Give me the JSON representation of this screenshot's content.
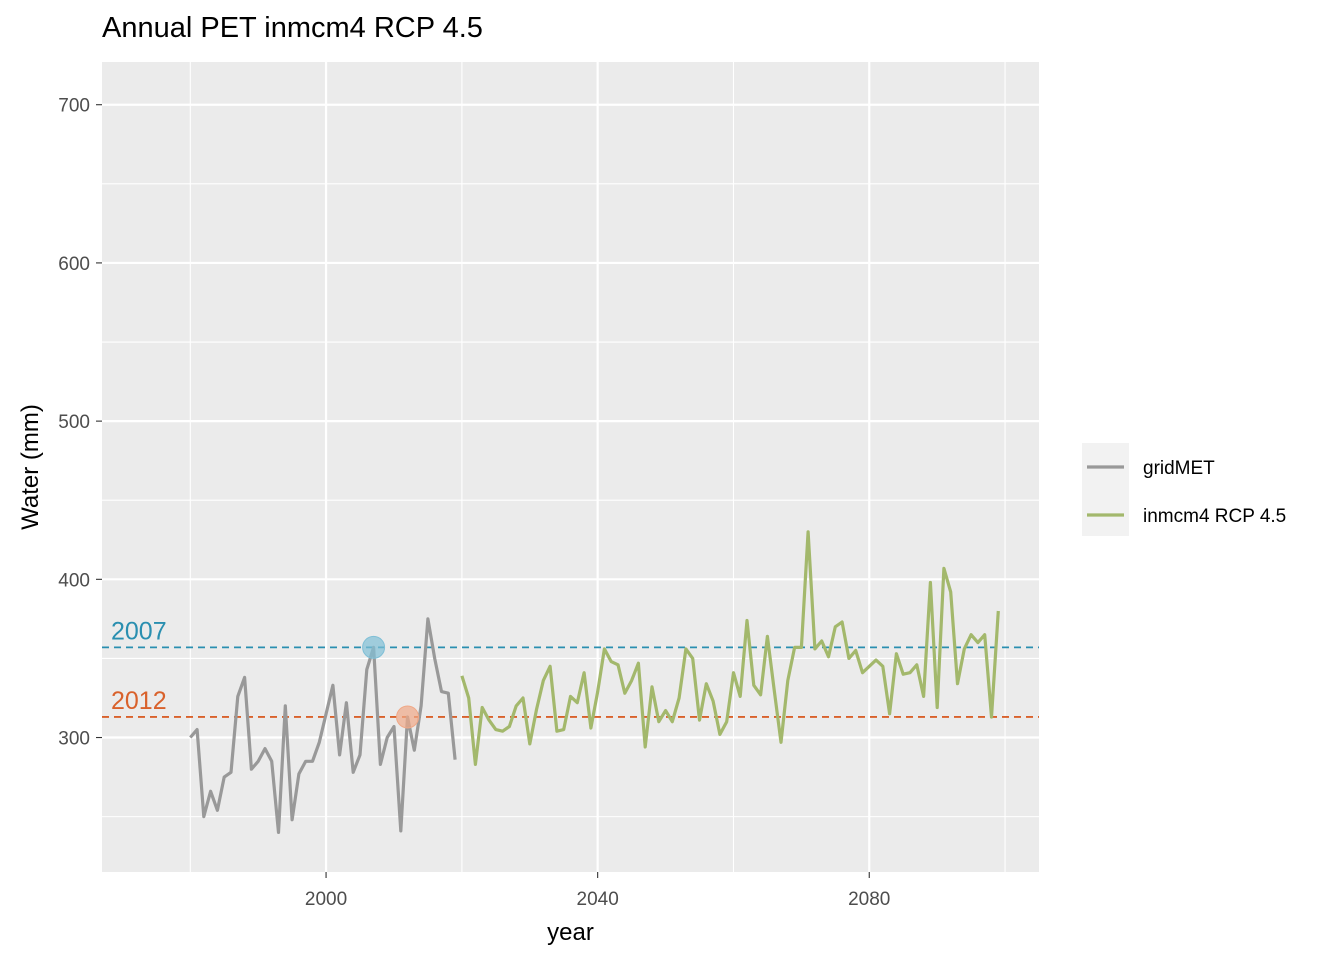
{
  "chart_data": {
    "type": "line",
    "title": "Annual PET inmcm4 RCP 4.5",
    "xlabel": "year",
    "ylabel": "Water (mm)",
    "xlim": [
      1967,
      2105
    ],
    "ylim": [
      215,
      727
    ],
    "x_ticks": [
      2000,
      2040,
      2080
    ],
    "y_ticks": [
      300,
      400,
      500,
      600,
      700
    ],
    "grid": true,
    "legend_position": "right",
    "series": [
      {
        "name": "gridMET",
        "color": "#999999",
        "x": [
          1980,
          1981,
          1982,
          1983,
          1984,
          1985,
          1986,
          1987,
          1988,
          1989,
          1990,
          1991,
          1992,
          1993,
          1994,
          1995,
          1996,
          1997,
          1998,
          1999,
          2000,
          2001,
          2002,
          2003,
          2004,
          2005,
          2006,
          2007,
          2008,
          2009,
          2010,
          2011,
          2012,
          2013,
          2014,
          2015,
          2016,
          2017,
          2018,
          2019
        ],
        "y": [
          300,
          305,
          250,
          266,
          254,
          275,
          278,
          326,
          338,
          280,
          285,
          293,
          285,
          240,
          320,
          248,
          277,
          285,
          285,
          297,
          315,
          333,
          289,
          322,
          278,
          289,
          343,
          357,
          283,
          300,
          307,
          241,
          313,
          292,
          320,
          375,
          350,
          329,
          328,
          286
        ]
      },
      {
        "name": "inmcm4 RCP 4.5",
        "color": "#a3b86c",
        "x": [
          2020,
          2021,
          2022,
          2023,
          2024,
          2025,
          2026,
          2027,
          2028,
          2029,
          2030,
          2031,
          2032,
          2033,
          2034,
          2035,
          2036,
          2037,
          2038,
          2039,
          2040,
          2041,
          2042,
          2043,
          2044,
          2045,
          2046,
          2047,
          2048,
          2049,
          2050,
          2051,
          2052,
          2053,
          2054,
          2055,
          2056,
          2057,
          2058,
          2059,
          2060,
          2061,
          2062,
          2063,
          2064,
          2065,
          2066,
          2067,
          2068,
          2069,
          2070,
          2071,
          2072,
          2073,
          2074,
          2075,
          2076,
          2077,
          2078,
          2079,
          2080,
          2081,
          2082,
          2083,
          2084,
          2085,
          2086,
          2087,
          2088,
          2089,
          2090,
          2091,
          2092,
          2093,
          2094,
          2095,
          2096,
          2097,
          2098,
          2099
        ],
        "y": [
          339,
          325,
          283,
          319,
          311,
          305,
          304,
          307,
          320,
          325,
          296,
          318,
          336,
          345,
          304,
          305,
          326,
          322,
          341,
          306,
          329,
          356,
          348,
          346,
          328,
          336,
          347,
          294,
          332,
          310,
          317,
          310,
          325,
          356,
          350,
          311,
          334,
          323,
          302,
          310,
          341,
          326,
          374,
          333,
          327,
          364,
          330,
          297,
          336,
          357,
          357,
          430,
          356,
          361,
          351,
          370,
          373,
          350,
          355,
          341,
          345,
          349,
          345,
          315,
          353,
          340,
          341,
          346,
          326,
          398,
          319,
          407,
          392,
          334,
          356,
          365,
          360,
          365,
          313,
          380
        ]
      }
    ],
    "reference_lines": [
      {
        "label": "2007",
        "value": 357,
        "color": "#2a8fb0"
      },
      {
        "label": "2012",
        "value": 313,
        "color": "#d9612b"
      }
    ],
    "highlight_points": [
      {
        "x": 2007,
        "y": 357,
        "color": "#7fbfd6"
      },
      {
        "x": 2012,
        "y": 313,
        "color": "#f0a887"
      }
    ]
  }
}
